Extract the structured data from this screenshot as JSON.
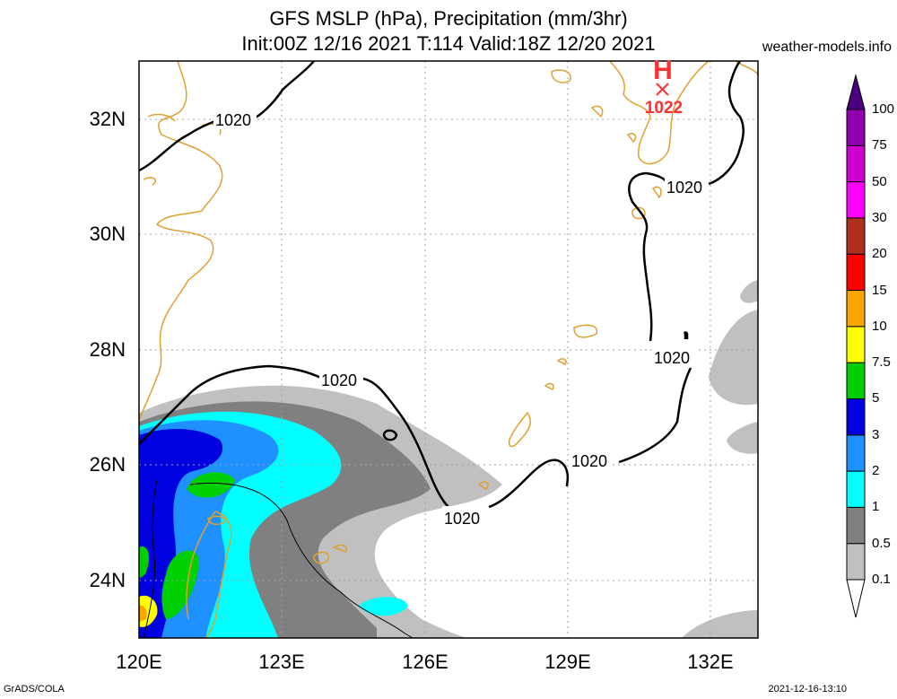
{
  "header": {
    "title_line1": "GFS MSLP (hPa), Precipitation (mm/3hr)",
    "title_line2": "Init:00Z 12/16 2021 T:114 Valid:18Z 12/20 2021",
    "site": "weather-models.info"
  },
  "axes": {
    "lat_labels": [
      "32N",
      "30N",
      "28N",
      "26N",
      "24N"
    ],
    "lon_labels": [
      "120E",
      "123E",
      "126E",
      "129E",
      "132E"
    ]
  },
  "pressure_labels": {
    "isobar": "1020",
    "high_marker": "H",
    "high_value": "1022"
  },
  "colorbar": {
    "levels": [
      "0.1",
      "0.5",
      "1",
      "2",
      "3",
      "5",
      "7.5",
      "10",
      "15",
      "20",
      "30",
      "50",
      "75",
      "100"
    ],
    "colors": [
      "#c0c0c0",
      "#808080",
      "#00ffff",
      "#1e90ff",
      "#0000e0",
      "#00d000",
      "#ffff00",
      "#ffa500",
      "#ff0000",
      "#b03020",
      "#ff00ff",
      "#d000d0",
      "#9000b0",
      "#4b0082"
    ]
  },
  "colors": {
    "coastline": "#e0a030",
    "isobar": "#000000",
    "high": "#ff3030"
  },
  "footer": {
    "left": "GrADS/COLA",
    "right": "2021-12-16-13:10"
  }
}
